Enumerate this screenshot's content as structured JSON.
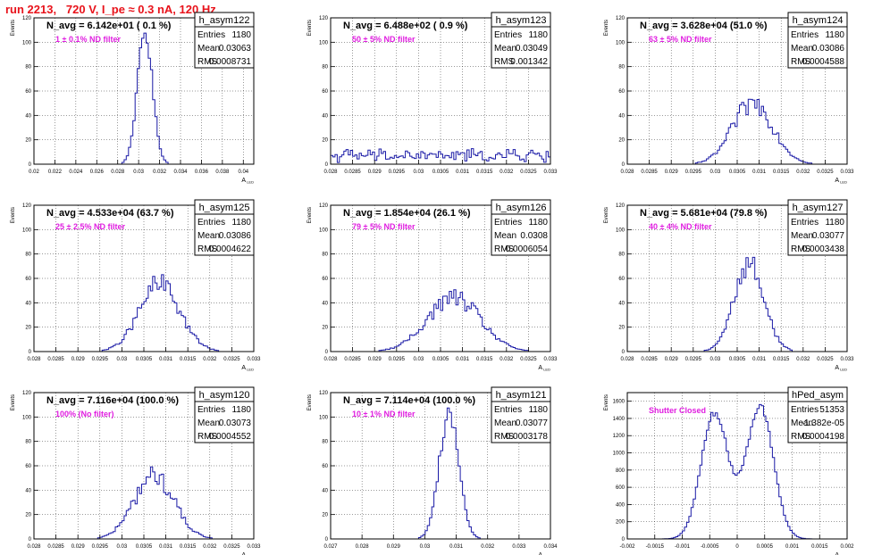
{
  "page_title": "run 2213,   720 V, I_pe ≈ 0.3 nA, 120 Hz",
  "colors": {
    "title": "#e8131b",
    "hist": "#1a1aa6",
    "annotation": "#e01ee0",
    "frame": "#000000",
    "grid": "#000000"
  },
  "stats_labels": {
    "entries": "Entries",
    "mean": "Mean",
    "rms": "RMS"
  },
  "chart_data": [
    {
      "type": "histogram",
      "name": "h_asym122",
      "header": "N_avg = 6.142e+01 ( 0.1 %)",
      "note": "1 ± 0.1% ND filter",
      "entries": "1180",
      "mean": "0.03063",
      "rms": "0.0008731",
      "ylabel": "Events",
      "xlabel": "A_LED",
      "xlim": [
        0.02,
        0.041
      ],
      "ylim": [
        0,
        120
      ],
      "xticks": [
        "0.02",
        "0.022",
        "0.024",
        "0.026",
        "0.028",
        "0.03",
        "0.032",
        "0.034",
        "0.036",
        "0.038",
        "0.04"
      ],
      "yticks": [
        "0",
        "20",
        "40",
        "60",
        "80",
        "100",
        "120"
      ],
      "peaks": [
        {
          "mu": 0.0306,
          "sigma": 0.00072,
          "amp": 108
        }
      ],
      "noise": 0.06,
      "floor": 0
    },
    {
      "type": "histogram",
      "name": "h_asym123",
      "header": "N_avg = 6.488e+02 ( 0.9 %)",
      "note": "50 ± 5% ND filter",
      "entries": "1180",
      "mean": "0.03049",
      "rms": "0.001342",
      "ylabel": "Events",
      "xlabel": "",
      "xlim": [
        0.028,
        0.033
      ],
      "ylim": [
        0,
        120
      ],
      "xticks": [
        "0.028",
        "0.0285",
        "0.029",
        "0.0295",
        "0.03",
        "0.0305",
        "0.031",
        "0.0315",
        "0.032",
        "0.0325",
        "0.033"
      ],
      "yticks": [
        "0",
        "20",
        "40",
        "60",
        "80",
        "100",
        "120"
      ],
      "peaks": [],
      "noise": 0.6,
      "floor": 7
    },
    {
      "type": "histogram",
      "name": "h_asym124",
      "header": "N_avg = 3.628e+04 (51.0 %)",
      "note": "63 ± 5% ND filter",
      "entries": "1180",
      "mean": "0.03086",
      "rms": "0.0004588",
      "ylabel": "Events",
      "xlabel": "A_LED",
      "xlim": [
        0.028,
        0.033
      ],
      "ylim": [
        0,
        120
      ],
      "xticks": [
        "0.028",
        "0.0285",
        "0.029",
        "0.0295",
        "0.03",
        "0.0305",
        "0.031",
        "0.0315",
        "0.032",
        "0.0325",
        "0.033"
      ],
      "yticks": [
        "0",
        "20",
        "40",
        "60",
        "80",
        "100",
        "120"
      ],
      "peaks": [
        {
          "mu": 0.03086,
          "sigma": 0.00046,
          "amp": 50
        }
      ],
      "noise": 0.18,
      "floor": 0
    },
    {
      "type": "histogram",
      "name": "h_asym125",
      "header": "N_avg = 4.533e+04 (63.7 %)",
      "note": "25 ± 2.5% ND filter",
      "entries": "1180",
      "mean": "0.03086",
      "rms": "0.0004622",
      "ylabel": "Events",
      "xlabel": "A_LED",
      "xlim": [
        0.028,
        0.033
      ],
      "ylim": [
        0,
        120
      ],
      "xticks": [
        "0.028",
        "0.0285",
        "0.029",
        "0.0295",
        "0.03",
        "0.0305",
        "0.031",
        "0.0315",
        "0.032",
        "0.0325",
        "0.033"
      ],
      "yticks": [
        "0",
        "20",
        "40",
        "60",
        "80",
        "100",
        "120"
      ],
      "peaks": [
        {
          "mu": 0.03086,
          "sigma": 0.00046,
          "amp": 55
        }
      ],
      "noise": 0.18,
      "floor": 0
    },
    {
      "type": "histogram",
      "name": "h_asym126",
      "header": "N_avg = 1.854e+04 (26.1 %)",
      "note": "79 ± 5% ND filter",
      "entries": "1180",
      "mean": "0.0308",
      "rms": "0.0006054",
      "ylabel": "Events",
      "xlabel": "A_LED",
      "xlim": [
        0.028,
        0.033
      ],
      "ylim": [
        0,
        120
      ],
      "xticks": [
        "0.028",
        "0.0285",
        "0.029",
        "0.0295",
        "0.03",
        "0.0305",
        "0.031",
        "0.0315",
        "0.032",
        "0.0325",
        "0.033"
      ],
      "yticks": [
        "0",
        "20",
        "40",
        "60",
        "80",
        "100",
        "120"
      ],
      "peaks": [
        {
          "mu": 0.0308,
          "sigma": 0.0006,
          "amp": 44
        }
      ],
      "noise": 0.18,
      "floor": 0
    },
    {
      "type": "histogram",
      "name": "h_asym127",
      "header": "N_avg = 5.681e+04 (79.8 %)",
      "note": "40 ± 4% ND filter",
      "entries": "1180",
      "mean": "0.03077",
      "rms": "0.0003438",
      "ylabel": "Events",
      "xlabel": "A_LED",
      "xlim": [
        0.028,
        0.033
      ],
      "ylim": [
        0,
        120
      ],
      "xticks": [
        "0.028",
        "0.0285",
        "0.029",
        "0.0295",
        "0.03",
        "0.0305",
        "0.031",
        "0.0315",
        "0.032",
        "0.0325",
        "0.033"
      ],
      "yticks": [
        "0",
        "20",
        "40",
        "60",
        "80",
        "100",
        "120"
      ],
      "peaks": [
        {
          "mu": 0.03077,
          "sigma": 0.00034,
          "amp": 72
        }
      ],
      "noise": 0.15,
      "floor": 0
    },
    {
      "type": "histogram",
      "name": "h_asym120",
      "header": "N_avg = 7.116e+04 (100.0 %)",
      "note": "100% (No filter)",
      "entries": "1180",
      "mean": "0.03073",
      "rms": "0.0004552",
      "ylabel": "Events",
      "xlabel": "A_LED",
      "xlim": [
        0.028,
        0.033
      ],
      "ylim": [
        0,
        120
      ],
      "xticks": [
        "0.028",
        "0.0285",
        "0.029",
        "0.0295",
        "0.03",
        "0.0305",
        "0.031",
        "0.0315",
        "0.032",
        "0.0325",
        "0.033"
      ],
      "yticks": [
        "0",
        "20",
        "40",
        "60",
        "80",
        "100",
        "120"
      ],
      "peaks": [
        {
          "mu": 0.03073,
          "sigma": 0.00045,
          "amp": 52
        }
      ],
      "noise": 0.18,
      "floor": 0
    },
    {
      "type": "histogram",
      "name": "h_asym121",
      "header": "N_avg = 7.114e+04 (100.0 %)",
      "note": "10 ± 1% ND filter",
      "entries": "1180",
      "mean": "0.03077",
      "rms": "0.0003178",
      "ylabel": "Events",
      "xlabel": "A_LED",
      "xlim": [
        0.027,
        0.034
      ],
      "ylim": [
        0,
        120
      ],
      "xticks": [
        "0.027",
        "0.028",
        "0.029",
        "0.03",
        "0.031",
        "0.032",
        "0.033",
        "0.034"
      ],
      "yticks": [
        "0",
        "20",
        "40",
        "60",
        "80",
        "100",
        "120"
      ],
      "peaks": [
        {
          "mu": 0.03077,
          "sigma": 0.00031,
          "amp": 104
        }
      ],
      "noise": 0.08,
      "floor": 0
    },
    {
      "type": "histogram",
      "name": "hPed_asym",
      "header": "",
      "note": "Shutter Closed",
      "entries": "51353",
      "mean": "-1.382e-05",
      "rms": "0.0004198",
      "ylabel": "Events",
      "xlabel": "A_LED",
      "xlim": [
        -0.002,
        0.002
      ],
      "ylim": [
        0,
        1700
      ],
      "xticks": [
        "-0.002",
        "-0.0015",
        "-0.001",
        "-0.0005",
        "0",
        "0.0005",
        "0.001",
        "0.0015",
        "0.002"
      ],
      "yticks": [
        "0",
        "200",
        "400",
        "600",
        "800",
        "1000",
        "1200",
        "1400",
        "1600"
      ],
      "peaks": [
        {
          "mu": -0.00042,
          "sigma": 0.00024,
          "amp": 1420
        },
        {
          "mu": 0.00042,
          "sigma": 0.00024,
          "amp": 1500
        },
        {
          "mu": 0.0,
          "sigma": 0.0003,
          "amp": 120
        }
      ],
      "noise": 0.03,
      "floor": 0
    }
  ]
}
